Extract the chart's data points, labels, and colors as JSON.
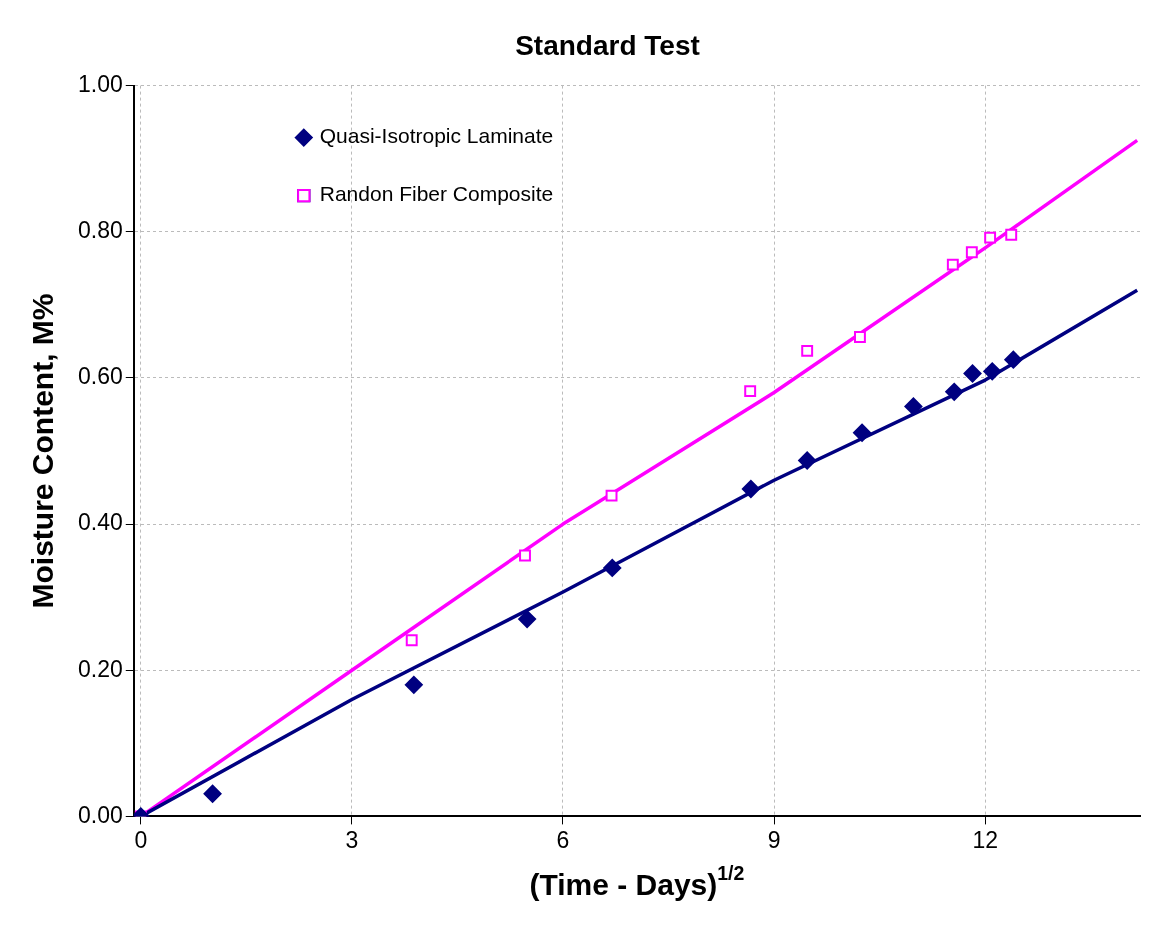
{
  "chart_data": {
    "type": "scatter",
    "title": "Standard Test",
    "xlabel": "(Time - Days)$^{1/2}$",
    "ylabel": "Moisture Content, M%",
    "xlim": [
      -0.1,
      14.2
    ],
    "xticks": [
      0,
      3,
      6,
      9,
      12
    ],
    "ylim": [
      0,
      1
    ],
    "yticks": [
      {
        "value": 0,
        "label": "0.00"
      },
      {
        "value": 0.2,
        "label": "0.20"
      },
      {
        "value": 0.4,
        "label": "0.40"
      },
      {
        "value": 0.6,
        "label": "0.60"
      },
      {
        "value": 0.8,
        "label": "0.80"
      },
      {
        "value": 1,
        "label": "1.00"
      }
    ],
    "grid": true,
    "legend": "top left",
    "series": [
      {
        "name": "Quasi-Isotropic Laminate",
        "color": "#000080",
        "marker": "diamond",
        "x": [
          0,
          1.02,
          3.88,
          5.49,
          6.7,
          8.67,
          9.47,
          10.25,
          10.98,
          11.56,
          11.82,
          12.1,
          12.4
        ],
        "values": [
          0,
          0.031,
          0.18,
          0.27,
          0.34,
          0.448,
          0.487,
          0.525,
          0.561,
          0.581,
          0.606,
          0.609,
          0.625
        ]
      },
      {
        "name": "Randon Fiber Composite",
        "color": "#ff00ff",
        "marker": "square",
        "x": [
          0,
          3.85,
          5.46,
          6.69,
          8.66,
          9.47,
          10.22,
          11.54,
          11.81,
          12.07,
          12.37
        ],
        "values": [
          0,
          0.241,
          0.357,
          0.439,
          0.582,
          0.637,
          0.656,
          0.755,
          0.772,
          0.792,
          0.796
        ]
      },
      {
        "type": "line",
        "color": "#000080",
        "marker": "none",
        "x": [
          0,
          3,
          6,
          9,
          12,
          14.16
        ],
        "values": [
          0,
          0.16,
          0.307,
          0.46,
          0.597,
          0.72
        ]
      },
      {
        "type": "line",
        "color": "#ff00ff",
        "marker": "none",
        "x": [
          0,
          3,
          6,
          9,
          12,
          14.16
        ],
        "values": [
          0,
          0.2,
          0.4,
          0.58,
          0.778,
          0.925
        ]
      }
    ]
  }
}
